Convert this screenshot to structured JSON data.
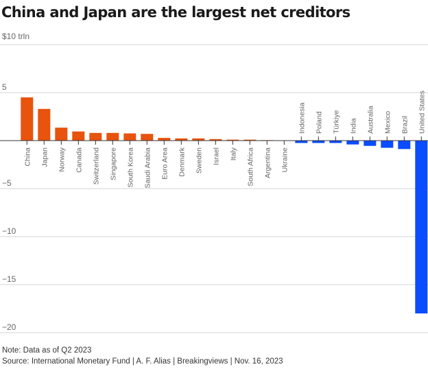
{
  "chart_data": {
    "type": "bar",
    "title": "China and Japan are the largest net creditors",
    "unit_label": "$10 trln",
    "xlabel": "",
    "ylabel": "",
    "ylim": [
      -20,
      10
    ],
    "yticks": [
      10,
      5,
      0,
      -5,
      -10,
      -15,
      -20
    ],
    "ytick_labels": [
      "",
      "5",
      "",
      "-5",
      "-10",
      "-15",
      "-20"
    ],
    "grid": true,
    "colors": {
      "positive": "#e8530e",
      "negative": "#0a4cff"
    },
    "categories": [
      "China",
      "Japan",
      "Norway",
      "Canada",
      "Switzerland",
      "Singapore",
      "South Korea",
      "Saudi Arabia",
      "Euro Area",
      "Denmark",
      "Sweden",
      "Israel",
      "Italy",
      "South Africa",
      "Argentina",
      "Ukraine",
      "Indonesia",
      "Poland",
      "Türkiye",
      "India",
      "Australia",
      "Mexico",
      "Brazil",
      "United States"
    ],
    "values": [
      4.5,
      3.3,
      1.35,
      0.95,
      0.8,
      0.8,
      0.75,
      0.7,
      0.28,
      0.23,
      0.23,
      0.16,
      0.1,
      0.1,
      0.05,
      0.01,
      -0.25,
      -0.25,
      -0.25,
      -0.4,
      -0.55,
      -0.75,
      -0.88,
      -18.0
    ]
  },
  "footer": {
    "note": "Note: Data as of Q2 2023",
    "source": "Source: International Monetary Fund | A. F. Alias | Breakingviews | Nov. 16, 2023"
  }
}
